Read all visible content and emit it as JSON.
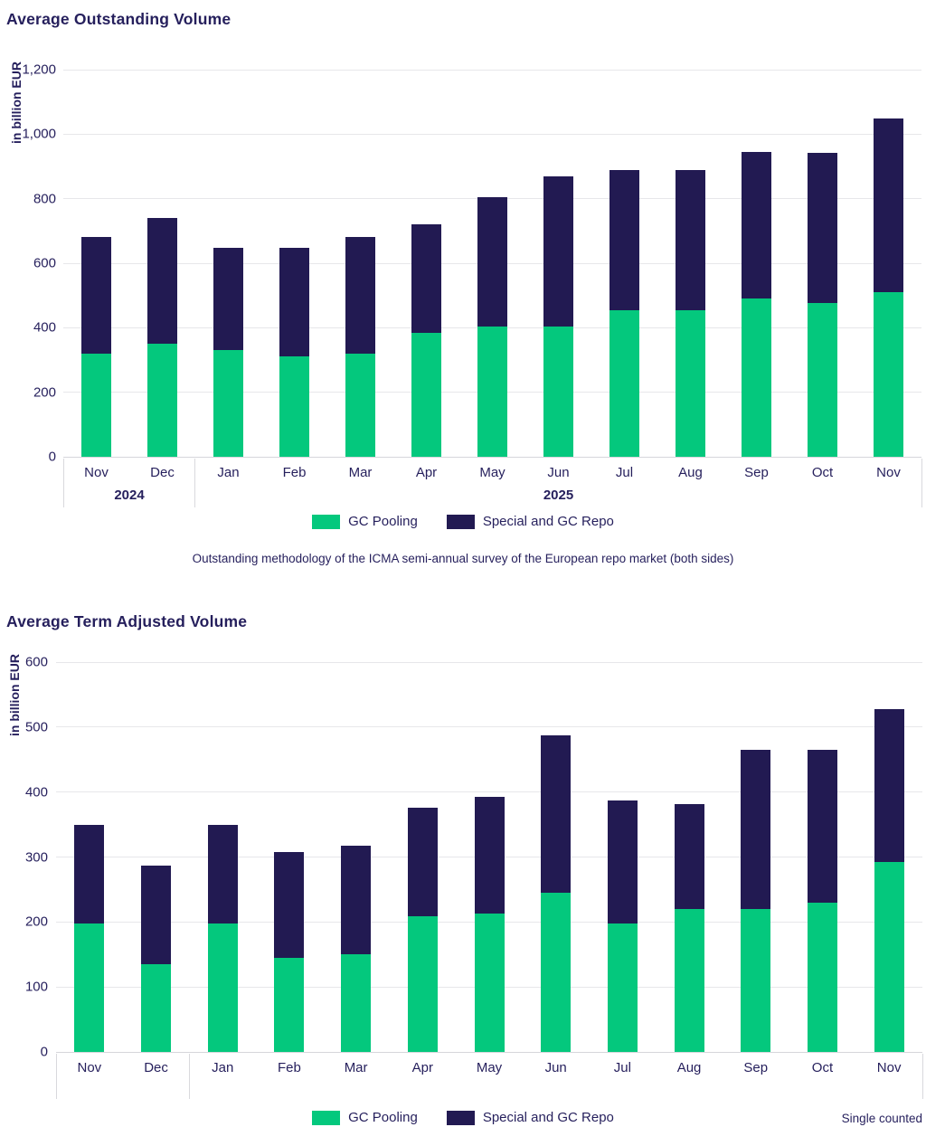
{
  "colors": {
    "green": "#04C87D",
    "navy": "#221A52",
    "text": "#251F5C",
    "gridline": "#E7E7EA",
    "axis_line": "#D6D6DB"
  },
  "chart_data": [
    {
      "type": "bar",
      "stacked": true,
      "title": "Average Outstanding Volume",
      "ylabel": "in billion EUR",
      "ylim": [
        0,
        1200
      ],
      "ystep": 200,
      "yticks": [
        "0",
        "200",
        "400",
        "600",
        "800",
        "1,000",
        "1,200"
      ],
      "grid": true,
      "legend_position": "bottom-center",
      "categories": [
        "Nov",
        "Dec",
        "Jan",
        "Feb",
        "Mar",
        "Apr",
        "May",
        "Jun",
        "Jul",
        "Aug",
        "Sep",
        "Oct",
        "Nov"
      ],
      "year_groups": [
        {
          "label": "2024",
          "count": 2
        },
        {
          "label": "2025",
          "count": 11
        }
      ],
      "series": [
        {
          "name": "GC Pooling",
          "color": "#04C87D",
          "values": [
            320,
            350,
            330,
            310,
            320,
            385,
            405,
            405,
            455,
            455,
            490,
            478,
            510
          ]
        },
        {
          "name": "Special and GC Repo",
          "color": "#221A52",
          "values": [
            360,
            390,
            318,
            338,
            360,
            337,
            400,
            465,
            435,
            435,
            455,
            465,
            540
          ]
        }
      ],
      "caption": "Outstanding methodology of the ICMA semi-annual survey of the European repo market (both sides)"
    },
    {
      "type": "bar",
      "stacked": true,
      "title": "Average Term Adjusted Volume",
      "ylabel": "in billion EUR",
      "ylim": [
        0,
        600
      ],
      "ystep": 100,
      "yticks": [
        "0",
        "100",
        "200",
        "300",
        "400",
        "500",
        "600"
      ],
      "grid": true,
      "legend_position": "bottom-center",
      "categories": [
        "Nov",
        "Dec",
        "Jan",
        "Feb",
        "Mar",
        "Apr",
        "May",
        "Jun",
        "Jul",
        "Aug",
        "Sep",
        "Oct",
        "Nov"
      ],
      "year_groups": [
        {
          "label": "",
          "count": 2
        },
        {
          "label": "",
          "count": 11
        }
      ],
      "series": [
        {
          "name": "GC Pooling",
          "color": "#04C87D",
          "values": [
            198,
            135,
            198,
            145,
            150,
            209,
            213,
            245,
            198,
            220,
            220,
            230,
            293
          ]
        },
        {
          "name": "Special and GC Repo",
          "color": "#221A52",
          "values": [
            152,
            152,
            152,
            162,
            168,
            167,
            179,
            242,
            189,
            161,
            245,
            235,
            235
          ]
        }
      ],
      "note": "Single counted"
    }
  ]
}
